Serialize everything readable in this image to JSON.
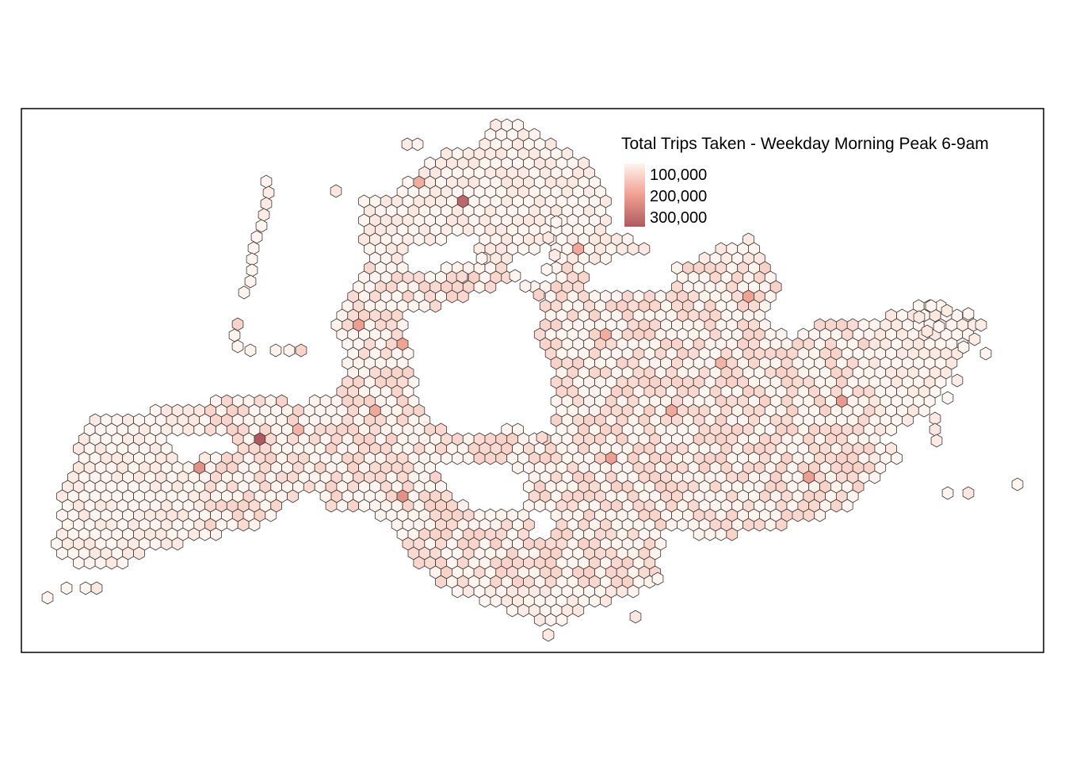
{
  "legend": {
    "title": "Total Trips Taken - Weekday Morning Peak 6-9am",
    "labels": [
      "100,000",
      "200,000",
      "300,000"
    ],
    "colors": {
      "low": "#fff5f0",
      "mid": "#f0a090",
      "high": "#b05a60"
    }
  },
  "map": {
    "type": "hexbin",
    "variable": "Total Trips Taken - Weekday Morning Peak 6-9am",
    "value_range": [
      0,
      330000
    ],
    "stroke_color": "#3a3a3a",
    "frame_color": "#000000",
    "hotspots_trips": [
      330000,
      300000,
      200000,
      200000,
      180000,
      170000,
      170000,
      170000,
      160000,
      160000,
      150000,
      150000,
      150000,
      140000,
      140000,
      140000,
      130000,
      130000
    ]
  }
}
